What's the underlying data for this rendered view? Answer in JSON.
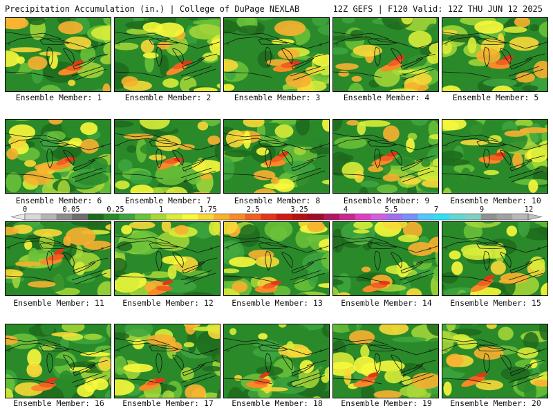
{
  "header": {
    "left": "Precipitation Accumulation (in.) | College of DuPage NEXLAB",
    "right": "12Z GEFS | F120 Valid: 12Z THU JUN 12 2025"
  },
  "panels": [
    {
      "label": "Ensemble Member: 1"
    },
    {
      "label": "Ensemble Member: 2"
    },
    {
      "label": "Ensemble Member: 3"
    },
    {
      "label": "Ensemble Member: 4"
    },
    {
      "label": "Ensemble Member: 5"
    },
    {
      "label": "Ensemble Member: 6"
    },
    {
      "label": "Ensemble Member: 7"
    },
    {
      "label": "Ensemble Member: 8"
    },
    {
      "label": "Ensemble Member: 9"
    },
    {
      "label": "Ensemble Member: 10"
    },
    {
      "label": "Ensemble Member: 11"
    },
    {
      "label": "Ensemble Member: 12"
    },
    {
      "label": "Ensemble Member: 13"
    },
    {
      "label": "Ensemble Member: 14"
    },
    {
      "label": "Ensemble Member: 15"
    },
    {
      "label": "Ensemble Member: 16"
    },
    {
      "label": "Ensemble Member: 17"
    },
    {
      "label": "Ensemble Member: 18"
    },
    {
      "label": "Ensemble Member: 19"
    },
    {
      "label": "Ensemble Member: 20"
    }
  ],
  "colorbar": {
    "labels": [
      "0",
      "0.05",
      "0.25",
      "1",
      "1.75",
      "2.5",
      "3.25",
      "4",
      "5.5",
      "7",
      "9",
      "12"
    ],
    "colors": [
      "#d8d8d8",
      "#b4b4b4",
      "#8c8c8c",
      "#6e6e6e",
      "#1d6a1d",
      "#2a8a2a",
      "#3ea43e",
      "#6cc23a",
      "#a8d838",
      "#d8ec3a",
      "#f8f83c",
      "#f8d838",
      "#f8b030",
      "#f88a28",
      "#f06020",
      "#e03818",
      "#d01818",
      "#b81010",
      "#a00c28",
      "#b01860",
      "#c82890",
      "#e040c0",
      "#d060e0",
      "#a070f0",
      "#7890f8",
      "#50c8f8",
      "#30e0f0",
      "#60d8d0",
      "#80d0c0",
      "#909090",
      "#a0a0a0",
      "#b8b8b8"
    ]
  }
}
